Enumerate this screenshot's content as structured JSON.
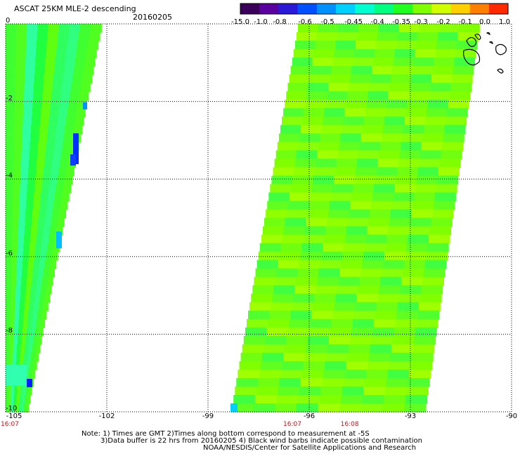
{
  "title": "ASCAT 25KM MLE-2 descending",
  "date": "20160205",
  "colorbar": {
    "labels": [
      "-15.0",
      "-1.0",
      "-0.8",
      "-0.6",
      "-0.5",
      "-0.45",
      "-0.4",
      "-0.35",
      "-0.3",
      "-0.2",
      "-0.1",
      "0.0",
      "1.0"
    ],
    "colors": [
      "#3a005a",
      "#5a009e",
      "#2a1ad8",
      "#0050ff",
      "#0090ff",
      "#00d0ff",
      "#00ffd0",
      "#00ff80",
      "#20ff20",
      "#80ff00",
      "#d0ff00",
      "#ffd000",
      "#ff8000",
      "#ff2a00"
    ]
  },
  "y_axis": {
    "labels": [
      "0",
      "-2",
      "-4",
      "-6",
      "-8",
      "-10"
    ],
    "range": [
      -10,
      0
    ]
  },
  "x_axis": {
    "labels": [
      "-105",
      "-102",
      "-99",
      "-96",
      "-93",
      "-90"
    ],
    "range": [
      -105,
      -90
    ]
  },
  "times": [
    {
      "label": "16:07",
      "lon": -105.0
    },
    {
      "label": "16:07",
      "lon": -96.5
    },
    {
      "label": "16:08",
      "lon": -94.8
    }
  ],
  "notes": [
    "Note: 1) Times are GMT 2)Times along bottom correspond to measurement at -5S",
    "3)Data buffer is 22 hrs from 20160205 4) Black wind barbs indicate possible contamination",
    "NOAA/NESDIS/Center for Satellite Applications and Research"
  ],
  "colors": {
    "swath": "#80ff00",
    "grid": "#000000",
    "time_text": "#c0141c"
  }
}
